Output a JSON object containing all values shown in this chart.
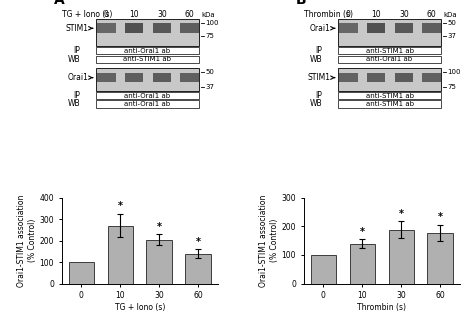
{
  "panel_A": {
    "title": "A",
    "bar_values": [
      100,
      270,
      205,
      140
    ],
    "bar_errors": [
      0,
      55,
      25,
      20
    ],
    "categories": [
      "0",
      "10",
      "30",
      "60"
    ],
    "xlabel": "TG + Iono (s)",
    "ylabel": "Orai1-STIM1 association\n(% Control)",
    "ylim": [
      0,
      400
    ],
    "yticks": [
      0,
      100,
      200,
      300,
      400
    ],
    "significant": [
      false,
      true,
      true,
      true
    ],
    "blot1_label_protein": "STIM1",
    "blot1_IP": "anti-Orai1 ab",
    "blot1_WB": "anti-STIM1 ab",
    "blot2_label_protein": "Orai1",
    "blot2_IP": "anti-Orai1 ab",
    "blot2_WB": "anti-Orai1 ab",
    "blot1_kda_top": "100",
    "blot1_kda_bot": "75",
    "blot2_kda_top": "50",
    "blot2_kda_bot": "37",
    "header": "TG + Iono (s)",
    "time_points": [
      "0",
      "10",
      "30",
      "60"
    ]
  },
  "panel_B": {
    "title": "B",
    "bar_values": [
      100,
      140,
      188,
      178
    ],
    "bar_errors": [
      0,
      15,
      30,
      28
    ],
    "categories": [
      "0",
      "10",
      "30",
      "60"
    ],
    "xlabel": "Thrombin (s)",
    "ylabel": "Orai1-STIM1 association\n(% Control)",
    "ylim": [
      0,
      300
    ],
    "yticks": [
      0,
      100,
      200,
      300
    ],
    "significant": [
      false,
      true,
      true,
      true
    ],
    "blot1_label_protein": "Orai1",
    "blot1_IP": "anti-STIM1 ab",
    "blot1_WB": "anti-Orai1 ab",
    "blot2_label_protein": "STIM1",
    "blot2_IP": "anti-STIM1 ab",
    "blot2_WB": "anti-STIM1 ab",
    "blot1_kda_top": "50",
    "blot1_kda_bot": "37",
    "blot2_kda_top": "100",
    "blot2_kda_bot": "75",
    "header": "Thrombin (s)",
    "time_points": [
      "0",
      "10",
      "30",
      "60"
    ]
  },
  "bar_color": "#b0b0b0",
  "bg_color": "#ffffff",
  "blot_bg": "#c8c8c8",
  "blot_band_color": "#404040",
  "font_size": 5.5,
  "title_font_size": 10,
  "kda_font_size": 5.0
}
